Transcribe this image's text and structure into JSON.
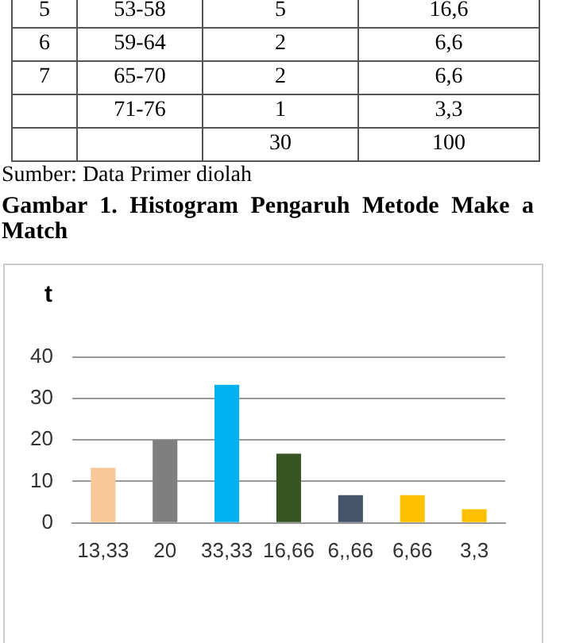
{
  "chart_data": [
    {
      "type": "other",
      "annotations": [
        "5",
        "53-58",
        "5",
        "16,6",
        "6",
        "59-64",
        "2",
        "6,6",
        "7",
        "65-70",
        "2",
        "6,6",
        null,
        "71-76",
        "1",
        "3,3",
        null,
        null,
        "30",
        "100"
      ],
      "subtitle": "Sumber: Data Primer diolah"
    },
    {
      "type": "bar",
      "title": "Gambar 1.  Histogram Pengaruh Metode Make a Match",
      "ylabel": "t",
      "categories": [
        "13,33",
        "20",
        "33,33",
        "16,66",
        "6,,66",
        "6,66",
        "3,3"
      ],
      "values": [
        13.3,
        20,
        33.3,
        16.7,
        6.7,
        6.7,
        3.3
      ],
      "colors": [
        "#fac898",
        "#7f7f7f",
        "#00b0f0",
        "#375623",
        "#44546a",
        "#ffc000",
        "#ffc000"
      ],
      "ylim": [
        0,
        40
      ],
      "yticks": [
        0,
        10,
        20,
        30,
        40
      ],
      "grid": "y",
      "legend": false
    }
  ]
}
